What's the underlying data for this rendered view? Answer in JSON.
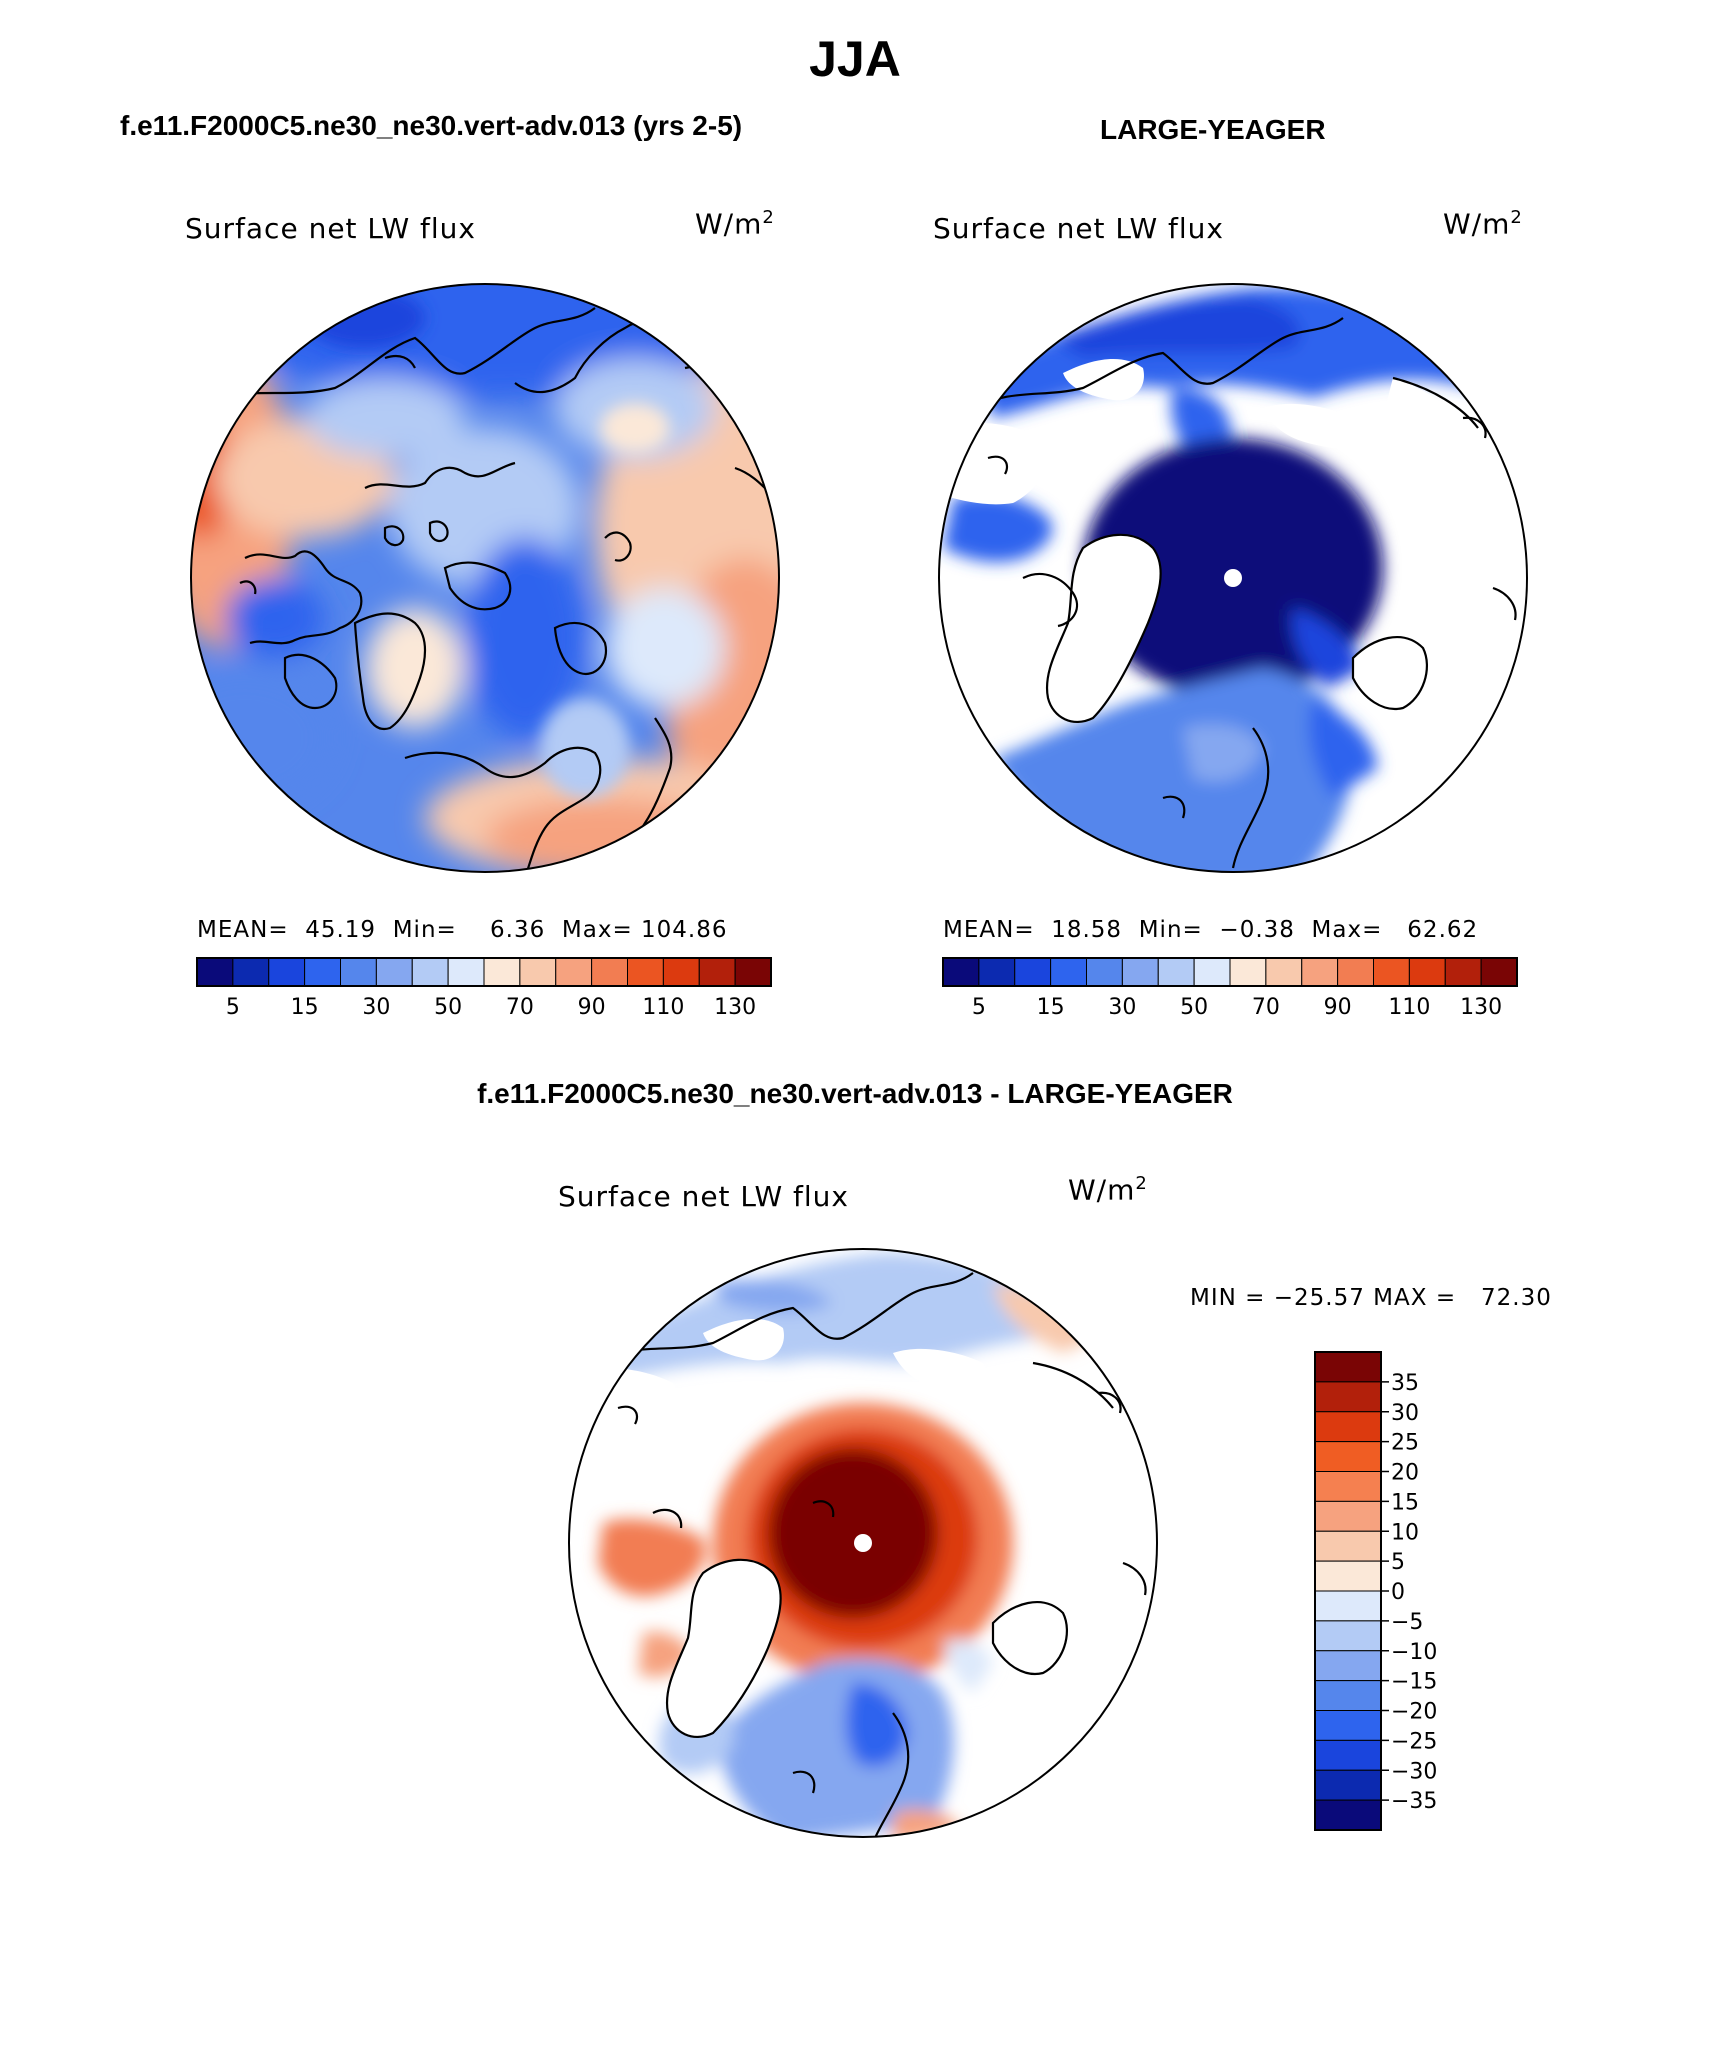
{
  "figure": {
    "title": "JJA"
  },
  "panels": [
    {
      "header": "f.e11.F2000C5.ne30_ne30.vert-adv.013 (yrs 2-5)",
      "variable": "Surface net LW flux",
      "units": "W/m",
      "units_exp": "2",
      "stats": {
        "mean_label": "MEAN=",
        "mean": "45.19",
        "min_label": "Min=",
        "min": "6.36",
        "max_label": "Max=",
        "max": "104.86"
      }
    },
    {
      "header": "LARGE-YEAGER",
      "variable": "Surface net LW flux",
      "units": "W/m",
      "units_exp": "2",
      "stats": {
        "mean_label": "MEAN=",
        "mean": "18.58",
        "min_label": "Min=",
        "min": "−0.38",
        "max_label": "Max=",
        "max": "62.62"
      }
    },
    {
      "header": "f.e11.F2000C5.ne30_ne30.vert-adv.013 - LARGE-YEAGER",
      "variable": "Surface net LW flux",
      "units": "W/m",
      "units_exp": "2",
      "stats": {
        "min_label": "MIN =",
        "min": "−25.57",
        "max_label": "MAX =",
        "max": "72.30"
      }
    }
  ],
  "colorbars": {
    "absolute": {
      "colors": [
        "#0a0a7a",
        "#0c2ab0",
        "#1a45dd",
        "#2e64ee",
        "#5586ec",
        "#85a7f0",
        "#b3cbf5",
        "#dde9fb",
        "#fbe8d8",
        "#f8c9ad",
        "#f6a27f",
        "#f27d52",
        "#eb5522",
        "#dc3a0f",
        "#b2200b",
        "#7a0505"
      ],
      "labels": [
        "5",
        "15",
        "30",
        "50",
        "70",
        "90",
        "110",
        "130"
      ]
    },
    "difference": {
      "colors": [
        "#7a0505",
        "#b2200b",
        "#dc3a0f",
        "#f05d23",
        "#f58050",
        "#f6a27f",
        "#f8c9ad",
        "#fbe8d8",
        "#dde9fb",
        "#b3cbf5",
        "#85a7f0",
        "#5586ec",
        "#2e64ee",
        "#1a45dd",
        "#0c2ab0",
        "#0a0a7a"
      ],
      "labels": [
        "35",
        "30",
        "25",
        "20",
        "15",
        "10",
        "5",
        "0",
        "−5",
        "−10",
        "−15",
        "−20",
        "−25",
        "−30",
        "−35"
      ]
    }
  }
}
